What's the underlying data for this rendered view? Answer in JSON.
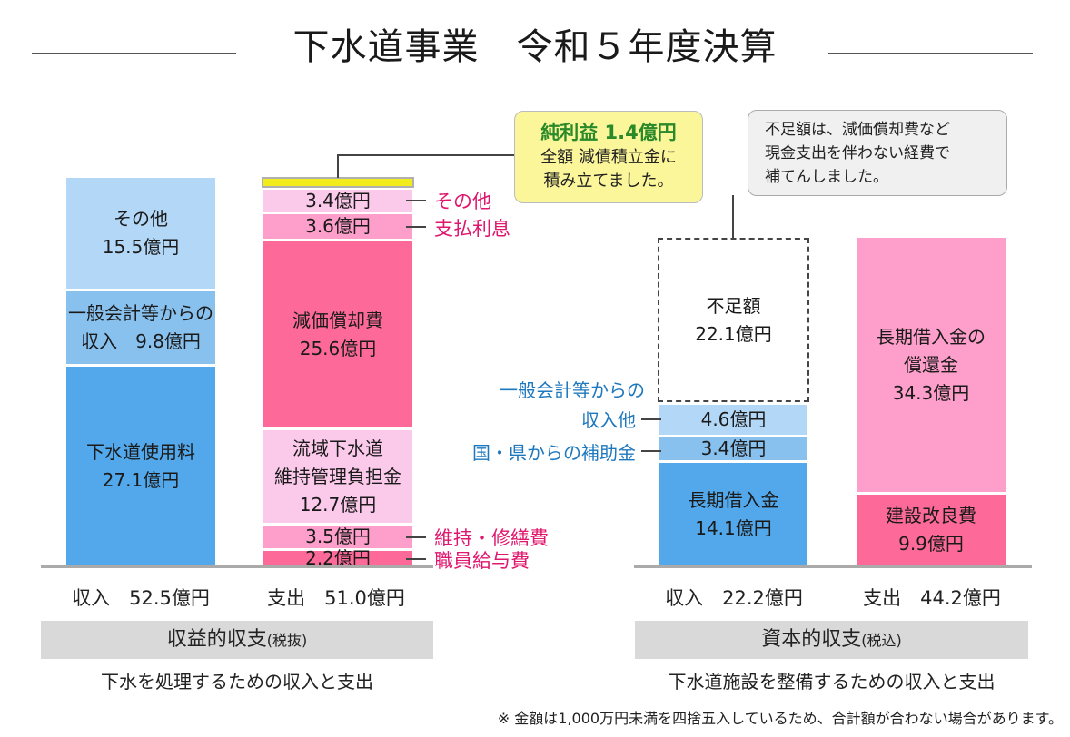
{
  "title": "下水道事業　令和５年度決算",
  "chart_data": [
    {
      "type": "bar",
      "name": "収益的収支",
      "name_note": "(税抜)",
      "subtitle": "下水を処理するための収入と支出",
      "unit": "億円",
      "categories": [
        "収入",
        "支出"
      ],
      "revenue": {
        "label": "収入 52.5億円",
        "items": [
          {
            "name": "その他",
            "value": 15.5,
            "text": "15.5億円",
            "color": "#b3d7f6"
          },
          {
            "name": "一般会計等からの 収入",
            "value": 9.8,
            "text": "9.8億円",
            "color": "#88c0ee"
          },
          {
            "name": "下水道使用料",
            "value": 27.1,
            "text": "27.1億円",
            "color": "#52a8ea"
          }
        ]
      },
      "expense": {
        "label": "支出 51.0億円",
        "items": [
          {
            "name": "純利益",
            "value": 1.4,
            "text": "純利益 1.4億円",
            "color": "#f2ec1c"
          },
          {
            "name": "その他",
            "value": 3.4,
            "text": "3.4億円",
            "color": "#fbc9ea"
          },
          {
            "name": "支払利息",
            "value": 3.6,
            "text": "3.6億円",
            "color": "#fd9fca"
          },
          {
            "name": "減価償却費",
            "value": 25.6,
            "text": "25.6億円",
            "color": "#fd6a9a"
          },
          {
            "name": "流域下水道 維持管理負担金",
            "value": 12.7,
            "text": "12.7億円",
            "color": "#fbc9ea"
          },
          {
            "name": "維持・修繕費",
            "value": 3.5,
            "text": "3.5億円",
            "color": "#fd9fca"
          },
          {
            "name": "職員給与費",
            "value": 2.2,
            "text": "2.2億円",
            "color": "#fd6a9a"
          }
        ]
      }
    },
    {
      "type": "bar",
      "name": "資本的収支",
      "name_note": "(税込)",
      "subtitle": "下水道施設を整備するための収入と支出",
      "unit": "億円",
      "categories": [
        "収入",
        "支出"
      ],
      "revenue": {
        "label": "収入 22.2億円",
        "items": [
          {
            "name": "不足額",
            "value": 22.1,
            "text": "22.1億円",
            "color": "#ffffff"
          },
          {
            "name": "一般会計等からの 収入他",
            "value": 4.6,
            "text": "4.6億円",
            "color": "#b3d7f6"
          },
          {
            "name": "国・県からの補助金",
            "value": 3.4,
            "text": "3.4億円",
            "color": "#88c0ee"
          },
          {
            "name": "長期借入金",
            "value": 14.1,
            "text": "14.1億円",
            "color": "#52a8ea"
          }
        ]
      },
      "expense": {
        "label": "支出 44.2億円",
        "items": [
          {
            "name": "長期借入金の 償還金",
            "value": 34.3,
            "text": "34.3億円",
            "color": "#fd9fca"
          },
          {
            "name": "建設改良費",
            "value": 9.9,
            "text": "9.9億円",
            "color": "#fd6a9a"
          }
        ]
      }
    }
  ],
  "labels": {
    "rev_other_name": "その他",
    "rev_other_value": "15.5億円",
    "rev_general_line1": "一般会計等からの",
    "rev_general_line2": "収入　9.8億円",
    "rev_fee_name": "下水道使用料",
    "rev_fee_value": "27.1億円",
    "exp_other_value": "3.4億円",
    "exp_interest_value": "3.6億円",
    "exp_depr_name": "減価償却費",
    "exp_depr_value": "25.6億円",
    "exp_basin_line1": "流域下水道",
    "exp_basin_line2": "維持管理負担金",
    "exp_basin_value": "12.7億円",
    "exp_repair_value": "3.5億円",
    "exp_staff_value": "2.2億円",
    "side_other": "その他",
    "side_interest": "支払利息",
    "side_repair": "維持・修繕費",
    "side_staff": "職員給与費",
    "cap_short_name": "不足額",
    "cap_short_value": "22.1億円",
    "cap_gen_value": "4.6億円",
    "cap_subsidy_value": "3.4億円",
    "cap_loan_name": "長期借入金",
    "cap_loan_value": "14.1億円",
    "cap_gen_side_line1": "一般会計等からの",
    "cap_gen_side_line2": "収入他",
    "cap_subsidy_side": "国・県からの補助金",
    "cap_repay_line1": "長期借入金の",
    "cap_repay_line2": "償還金",
    "cap_repay_value": "34.3億円",
    "cap_build_name": "建設改良費",
    "cap_build_value": "9.9億円"
  },
  "totals": {
    "rev_income": "収入　52.5億円",
    "rev_expense": "支出　51.0億円",
    "cap_income": "収入　22.2億円",
    "cap_expense": "支出　44.2億円"
  },
  "sections": {
    "revenue_title": "収益的収支",
    "revenue_note": "(税抜)",
    "revenue_desc": "下水を処理するための収入と支出",
    "capital_title": "資本的収支",
    "capital_note": "(税込)",
    "capital_desc": "下水道施設を整備するための収入と支出"
  },
  "callouts": {
    "profit_title": "純利益 1.4億円",
    "profit_line1": "全額 減債積立金に",
    "profit_line2": "積み立てました。",
    "shortfall_line1": "不足額は、減価償却費など",
    "shortfall_line2": "現金支出を伴わない経費で",
    "shortfall_line3": "補てんしました。"
  },
  "footnote": "※ 金額は1,000万円未満を四捨五入しているため、合計額が合わない場合があります。"
}
